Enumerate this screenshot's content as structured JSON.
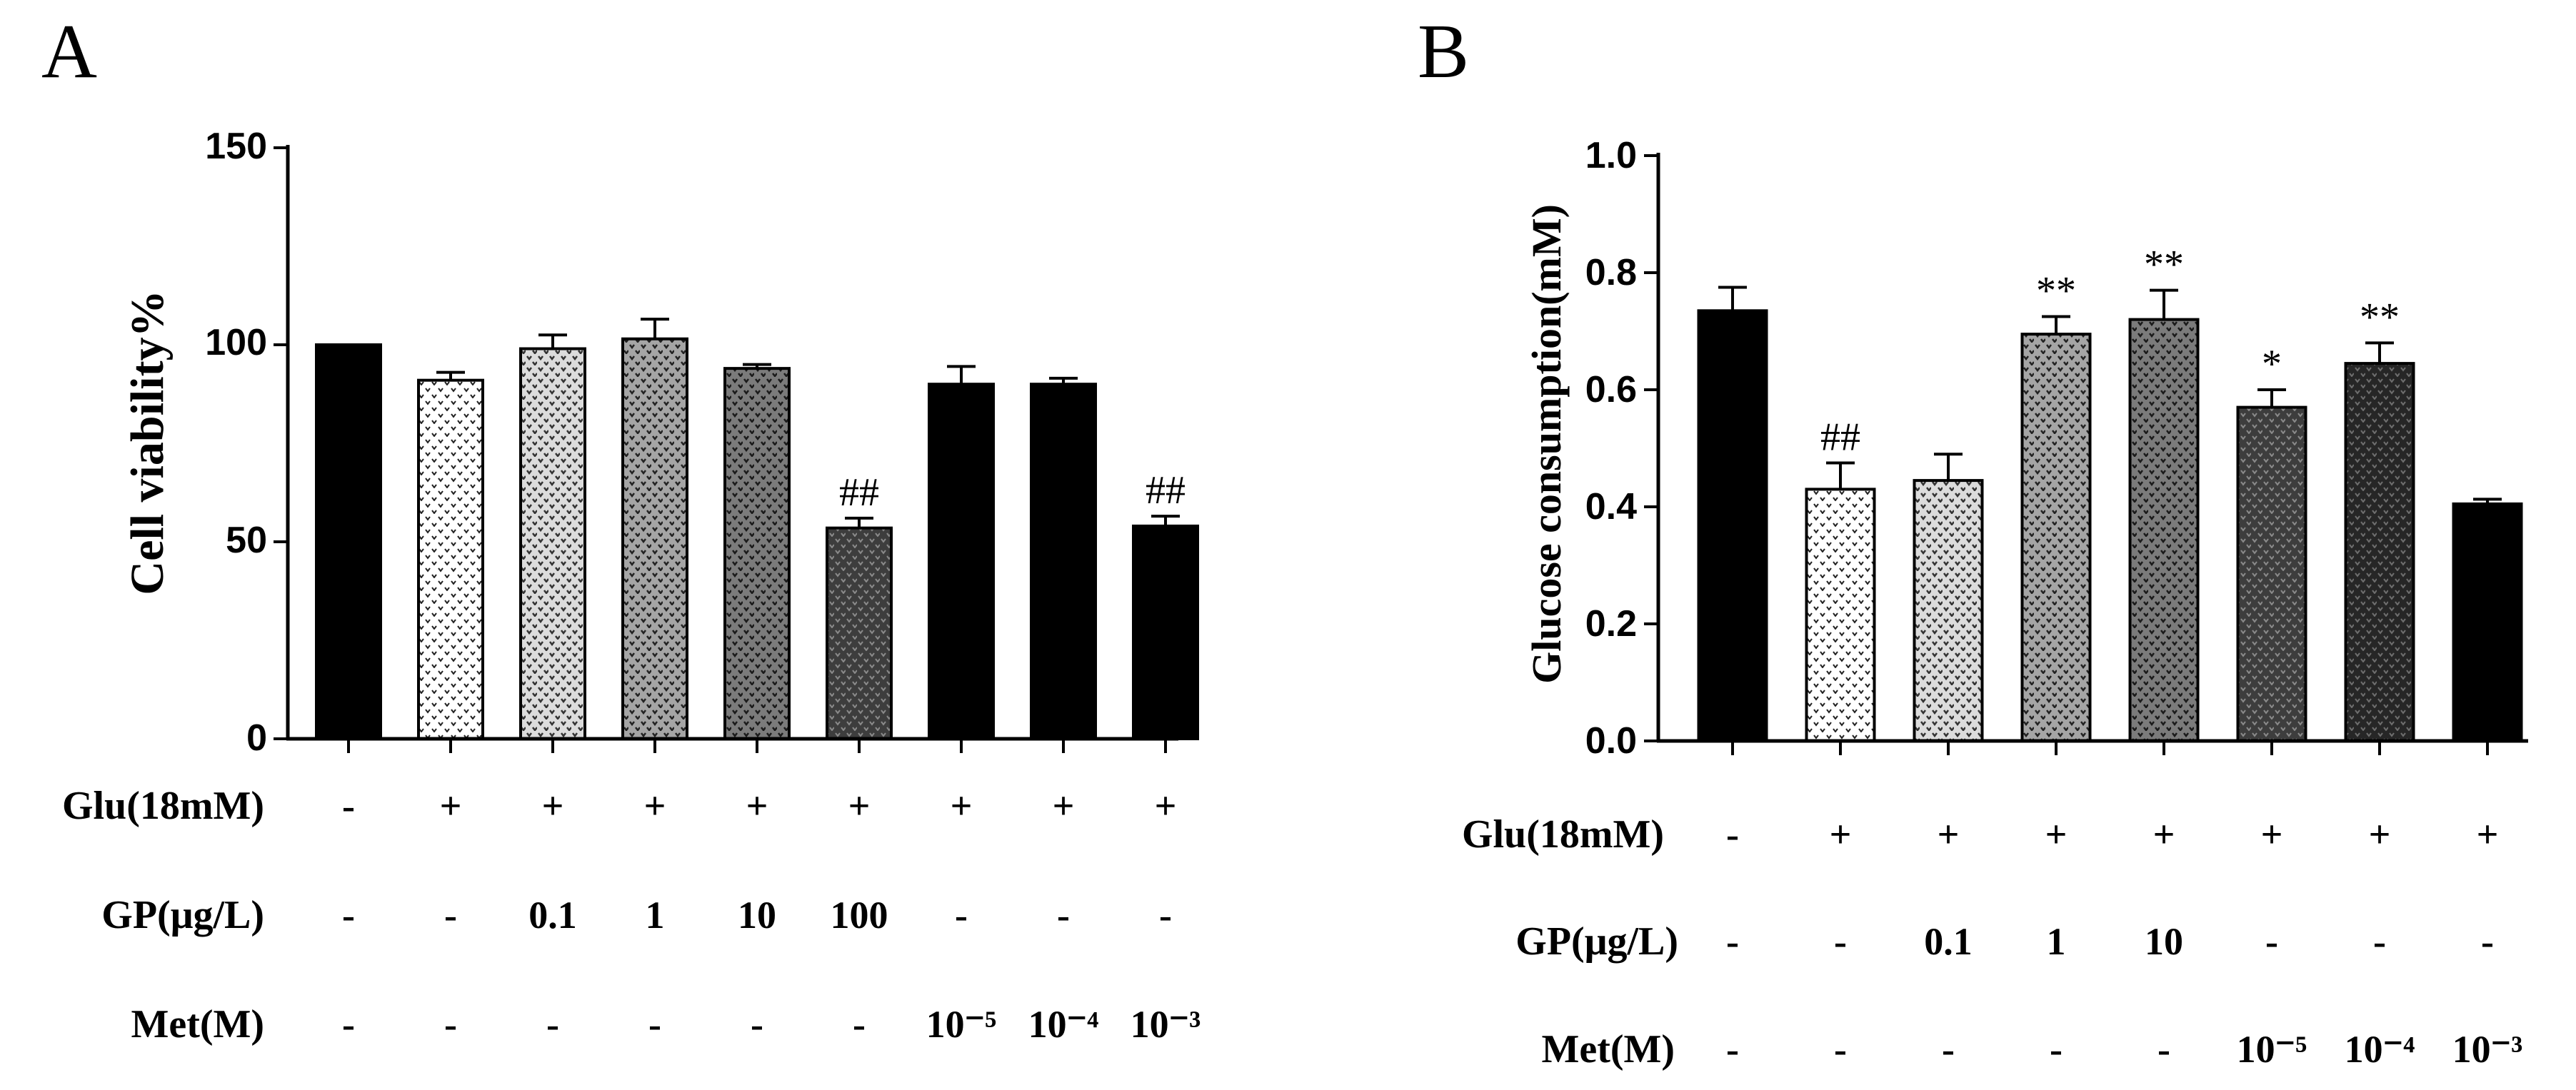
{
  "chart_data": [
    {
      "panel": "A",
      "type": "bar",
      "ylabel": "Cell  viability%",
      "ylim": [
        0,
        150
      ],
      "yticks": [
        0,
        50,
        100,
        150
      ],
      "bars": [
        {
          "value": 100,
          "err": 0,
          "fill": "black",
          "sig": ""
        },
        {
          "value": 91,
          "err": 2,
          "fill": "p1",
          "sig": ""
        },
        {
          "value": 99,
          "err": 3.5,
          "fill": "p2",
          "sig": ""
        },
        {
          "value": 101.5,
          "err": 5,
          "fill": "p3",
          "sig": ""
        },
        {
          "value": 94,
          "err": 1,
          "fill": "p4",
          "sig": ""
        },
        {
          "value": 53.5,
          "err": 2.5,
          "fill": "p5",
          "sig": "##"
        },
        {
          "value": 90,
          "err": 4.5,
          "fill": "black",
          "sig": ""
        },
        {
          "value": 90,
          "err": 1.5,
          "fill": "black",
          "sig": ""
        },
        {
          "value": 54,
          "err": 2.5,
          "fill": "black",
          "sig": "##"
        }
      ],
      "table": [
        {
          "label": "Glu(18mM)",
          "cells": [
            "-",
            "+",
            "+",
            "+",
            "+",
            "+",
            "+",
            "+",
            "+"
          ]
        },
        {
          "label": "GP(μg/L)",
          "cells": [
            "-",
            "-",
            "0.1",
            "1",
            "10",
            "100",
            "-",
            "-",
            "-"
          ]
        },
        {
          "label": "Met(M)",
          "cells": [
            "-",
            "-",
            "-",
            "-",
            "-",
            "-",
            "10⁻⁵",
            "10⁻⁴",
            "10⁻³"
          ]
        }
      ]
    },
    {
      "panel": "B",
      "type": "bar",
      "ylabel": "Glucose  consumption(mM)",
      "ylim": [
        0,
        1.0
      ],
      "yticks": [
        "0.0",
        "0.2",
        "0.4",
        "0.6",
        "0.8",
        "1.0"
      ],
      "bars": [
        {
          "value": 0.735,
          "err": 0.04,
          "fill": "black",
          "sig": ""
        },
        {
          "value": 0.43,
          "err": 0.045,
          "fill": "p1",
          "sig": "##"
        },
        {
          "value": 0.445,
          "err": 0.045,
          "fill": "p2",
          "sig": ""
        },
        {
          "value": 0.695,
          "err": 0.03,
          "fill": "p3",
          "sig": "**"
        },
        {
          "value": 0.72,
          "err": 0.05,
          "fill": "p4",
          "sig": "**"
        },
        {
          "value": 0.57,
          "err": 0.03,
          "fill": "p5",
          "sig": "*"
        },
        {
          "value": 0.645,
          "err": 0.035,
          "fill": "p6",
          "sig": "**"
        },
        {
          "value": 0.405,
          "err": 0.008,
          "fill": "black",
          "sig": ""
        }
      ],
      "table": [
        {
          "label": "Glu(18mM)",
          "cells": [
            "-",
            "+",
            "+",
            "+",
            "+",
            "+",
            "+",
            "+"
          ]
        },
        {
          "label": "GP(μg/L)",
          "cells": [
            "-",
            "-",
            "0.1",
            "1",
            "10",
            "-",
            "-",
            "-"
          ]
        },
        {
          "label": "Met(M)",
          "cells": [
            "-",
            "-",
            "-",
            "-",
            "-",
            "10⁻⁵",
            "10⁻⁴",
            "10⁻³"
          ]
        }
      ]
    }
  ]
}
